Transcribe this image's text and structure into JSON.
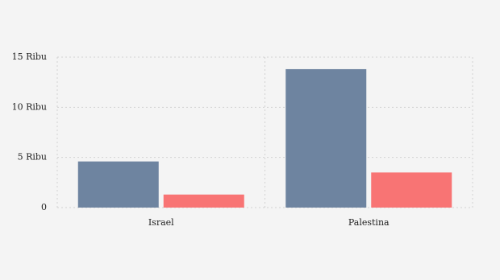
{
  "chart_data": {
    "type": "bar",
    "categories": [
      "Israel",
      "Palestina"
    ],
    "series": [
      {
        "color": "#6e84a0",
        "values": [
          4600,
          13800
        ]
      },
      {
        "color": "#f87474",
        "values": [
          1300,
          3500
        ]
      }
    ],
    "ylim": [
      0,
      15000
    ],
    "yticks": [
      0,
      {
        "value": 5000,
        "label": "5 Ribu"
      },
      {
        "value": 10000,
        "label": "10 Ribu"
      },
      {
        "value": 15000,
        "label": "15 Ribu"
      }
    ],
    "grid": true
  }
}
